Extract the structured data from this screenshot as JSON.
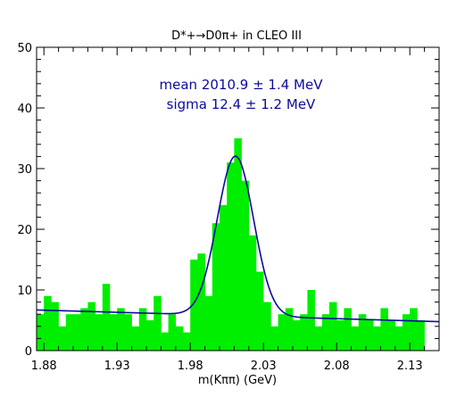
{
  "chart_data": {
    "type": "bar",
    "title": "D*+→D0π+ in CLEO III",
    "xlabel": "m(Kππ) (GeV)",
    "ylabel": "",
    "xlim": [
      1.875,
      2.15
    ],
    "ylim": [
      0,
      50
    ],
    "bin_width": 0.005,
    "bin_start": 1.875,
    "x_ticks": [
      "1.88",
      "1.93",
      "1.98",
      "2.03",
      "2.08",
      "2.13"
    ],
    "x_tick_values": [
      1.88,
      1.93,
      1.98,
      2.03,
      2.08,
      2.13
    ],
    "y_ticks": [
      "0",
      "10",
      "20",
      "30",
      "40",
      "50"
    ],
    "y_tick_values": [
      0,
      10,
      20,
      30,
      40,
      50
    ],
    "values": [
      6,
      9,
      8,
      4,
      6,
      6,
      7,
      8,
      6,
      11,
      6,
      7,
      6,
      4,
      7,
      5,
      9,
      3,
      6,
      4,
      3,
      15,
      16,
      9,
      21,
      24,
      31,
      35,
      28,
      19,
      13,
      8,
      4,
      6,
      7,
      5,
      6,
      10,
      4,
      6,
      8,
      5,
      7,
      4,
      6,
      5,
      4,
      7,
      5,
      4,
      6,
      7,
      5
    ],
    "series": [
      {
        "type": "bar",
        "color": "#00ee00",
        "values": [
          6,
          9,
          8,
          4,
          6,
          6,
          7,
          8,
          6,
          11,
          6,
          7,
          6,
          4,
          7,
          5,
          9,
          3,
          6,
          4,
          3,
          15,
          16,
          9,
          21,
          24,
          31,
          35,
          28,
          19,
          13,
          8,
          4,
          6,
          7,
          5,
          6,
          10,
          4,
          6,
          8,
          5,
          7,
          4,
          6,
          5,
          4,
          7,
          5,
          4,
          6,
          7,
          5
        ]
      },
      {
        "type": "line",
        "color": "#0b0b9a",
        "fit": {
          "model": "gaussian_plus_linear_background",
          "mean": 2.0109,
          "sigma": 0.0124,
          "amplitude": 26.3,
          "background": {
            "intercept_at_1875": 6.7,
            "slope_per_gev": -7.0
          }
        }
      }
    ],
    "annotations": [
      {
        "text": "mean 2010.9 ± 1.4 MeV"
      },
      {
        "text": "sigma 12.4 ± 1.2 MeV"
      }
    ],
    "grid": false,
    "legend": "none",
    "colors": {
      "bars": "#00ee00",
      "fit": "#0b0b9a",
      "frame": "#000000"
    }
  }
}
